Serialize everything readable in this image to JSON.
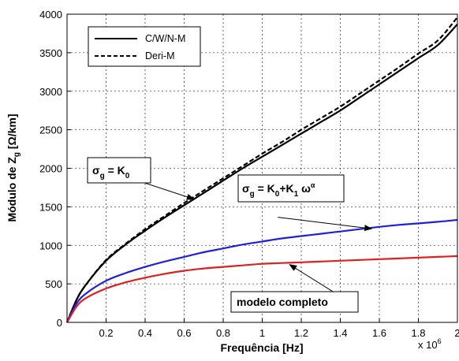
{
  "chart_data": {
    "type": "line",
    "title": "",
    "xlabel": "Frequência [Hz]",
    "ylabel_main": "Módulo de Z",
    "ylabel_sub": "g",
    "ylabel_unit": " [Ω/km]",
    "x_multiplier": "x 10",
    "x_multiplier_exp": "6",
    "xlim": [
      0,
      2
    ],
    "ylim": [
      0,
      4000
    ],
    "xticks": [
      0.2,
      0.4,
      0.6,
      0.8,
      1,
      1.2,
      1.4,
      1.6,
      1.8,
      2
    ],
    "xtick_labels": [
      "0.2",
      "0.4",
      "0.6",
      "0.8",
      "1",
      "1.2",
      "1.4",
      "1.6",
      "1.8",
      "2"
    ],
    "yticks": [
      0,
      500,
      1000,
      1500,
      2000,
      2500,
      3000,
      3500,
      4000
    ],
    "ytick_labels": [
      "0",
      "500",
      "1000",
      "1500",
      "2000",
      "2500",
      "3000",
      "3500",
      "4000"
    ],
    "grid": true,
    "legend_position": "top-left",
    "legend": [
      {
        "name": "C/W/N-M",
        "style": "solid"
      },
      {
        "name": "Deri-M",
        "style": "dashed"
      }
    ],
    "series": [
      {
        "name": "C/W/N-M",
        "color": "#000000",
        "style": "solid",
        "x": [
          0,
          0.05,
          0.1,
          0.2,
          0.3,
          0.4,
          0.5,
          0.6,
          0.7,
          0.8,
          0.9,
          1.0,
          1.1,
          1.2,
          1.3,
          1.4,
          1.5,
          1.6,
          1.7,
          1.8,
          1.9,
          2.0
        ],
        "y": [
          0,
          300,
          500,
          800,
          1010,
          1190,
          1360,
          1520,
          1680,
          1840,
          2000,
          2150,
          2300,
          2450,
          2600,
          2750,
          2920,
          3090,
          3260,
          3430,
          3600,
          3870
        ]
      },
      {
        "name": "Deri-M",
        "color": "#000000",
        "style": "dashed",
        "x": [
          0,
          0.05,
          0.1,
          0.2,
          0.3,
          0.4,
          0.5,
          0.6,
          0.7,
          0.8,
          0.9,
          1.0,
          1.1,
          1.2,
          1.3,
          1.4,
          1.5,
          1.6,
          1.7,
          1.8,
          1.9,
          2.0
        ],
        "y": [
          0,
          300,
          500,
          810,
          1020,
          1210,
          1380,
          1550,
          1710,
          1870,
          2030,
          2190,
          2340,
          2500,
          2650,
          2800,
          2970,
          3140,
          3310,
          3490,
          3660,
          3960
        ]
      },
      {
        "name": "sigma-k0-k1",
        "color": "#1f1fe0",
        "style": "solid",
        "x": [
          0,
          0.05,
          0.1,
          0.2,
          0.3,
          0.4,
          0.5,
          0.6,
          0.7,
          0.8,
          0.9,
          1.0,
          1.1,
          1.2,
          1.3,
          1.4,
          1.5,
          1.6,
          1.7,
          1.8,
          1.9,
          2.0
        ],
        "y": [
          0,
          250,
          380,
          540,
          640,
          720,
          790,
          850,
          910,
          960,
          1010,
          1050,
          1090,
          1120,
          1150,
          1180,
          1210,
          1240,
          1265,
          1285,
          1305,
          1330
        ]
      },
      {
        "name": "modelo-completo",
        "color": "#e01f1f",
        "style": "solid",
        "x": [
          0,
          0.05,
          0.1,
          0.2,
          0.3,
          0.4,
          0.5,
          0.6,
          0.7,
          0.8,
          0.9,
          1.0,
          1.1,
          1.2,
          1.3,
          1.4,
          1.5,
          1.6,
          1.7,
          1.8,
          1.9,
          2.0
        ],
        "y": [
          0,
          210,
          320,
          440,
          520,
          580,
          630,
          670,
          700,
          720,
          740,
          760,
          770,
          780,
          790,
          800,
          810,
          820,
          830,
          840,
          850,
          860
        ]
      }
    ],
    "annotations": [
      {
        "id": "sigma-k0",
        "sigma": "σ",
        "sub1": "g",
        "eq": " = K",
        "sub2": "0",
        "sup": "",
        "tail": "",
        "pos": [
          0.2,
          1975
        ],
        "arrow_to": [
          0.65,
          1600
        ]
      },
      {
        "id": "sigma-k0-k1",
        "sigma": "σ",
        "sub1": "g",
        "eq": " = K",
        "sub2": "0",
        "mid": "+K",
        "sub3": "1",
        "omega": " ω",
        "sup": "α",
        "pos": [
          1.08,
          1365
        ],
        "arrow_to": [
          1.56,
          1215
        ]
      },
      {
        "id": "modelo-completo",
        "text": "modelo completo",
        "pos": [
          1.4,
          340
        ],
        "arrow_to": [
          1.14,
          750
        ]
      }
    ]
  }
}
